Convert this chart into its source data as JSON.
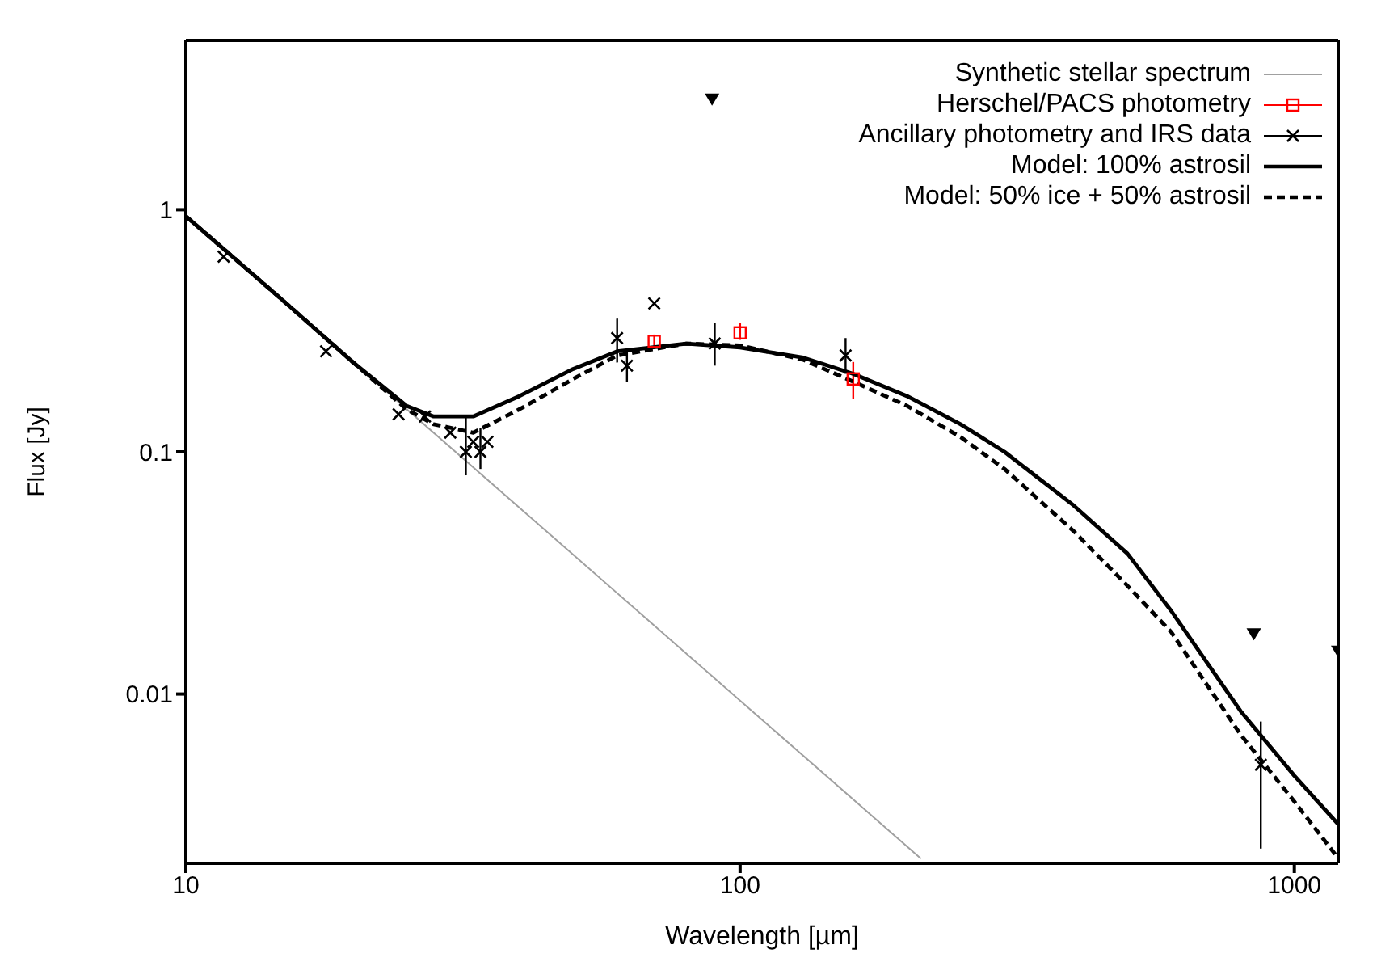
{
  "chart_data": {
    "type": "line",
    "xlabel": "Wavelength [µm]",
    "ylabel": "Flux [Jy]",
    "log": "xy",
    "legend": "top right",
    "xlim": [
      10,
      1200
    ],
    "xticks": [
      10,
      100,
      1000
    ],
    "ylim": [
      0.002,
      5
    ],
    "yticks": [
      0.01,
      0.1,
      1
    ],
    "series": [
      {
        "name": "Synthetic stellar spectrum",
        "type": "line",
        "color": "#a0a0a0",
        "line_style": "solid",
        "marker": "none",
        "x": [
          10,
          20,
          50,
          100,
          212
        ],
        "values": [
          0.94,
          0.235,
          0.0376,
          0.0094,
          0.00209
        ]
      },
      {
        "name": "Herschel/PACS photometry",
        "type": "scatter",
        "color": "#ff0000",
        "marker": "square",
        "x": [
          70,
          100,
          160
        ],
        "values": [
          0.286,
          0.31,
          0.2
        ],
        "errors": [
          [
            0.27,
            0.305
          ],
          [
            0.29,
            0.34
          ],
          [
            0.165,
            0.235
          ]
        ]
      },
      {
        "name": "Ancillary photometry and IRS data",
        "type": "scatter",
        "color": "#000000",
        "marker": "cross",
        "x": [
          11.7,
          17.9,
          24.2,
          27,
          30,
          32,
          33,
          34,
          35,
          60,
          62.5,
          70,
          90,
          155,
          870
        ],
        "values": [
          0.64,
          0.26,
          0.143,
          0.14,
          0.12,
          0.1,
          0.11,
          0.1,
          0.11,
          0.295,
          0.227,
          0.41,
          0.28,
          0.25,
          0.0051
        ],
        "errors": [
          null,
          null,
          null,
          null,
          null,
          [
            0.08,
            0.14
          ],
          null,
          [
            0.085,
            0.125
          ],
          null,
          [
            0.234,
            0.355
          ],
          [
            0.194,
            0.265
          ],
          null,
          [
            0.227,
            0.34
          ],
          [
            0.21,
            0.295
          ],
          [
            0.0023,
            0.0077
          ]
        ]
      },
      {
        "name": "Model: 100% astrosil",
        "type": "line",
        "color": "#000000",
        "line_style": "solid",
        "marker": "none",
        "x": [
          10,
          15,
          20,
          25,
          28,
          33,
          40,
          50,
          60,
          80,
          100,
          130,
          160,
          200,
          250,
          300,
          400,
          500,
          600,
          800,
          1000,
          1200
        ],
        "values": [
          0.94,
          0.42,
          0.235,
          0.155,
          0.14,
          0.14,
          0.17,
          0.22,
          0.26,
          0.28,
          0.27,
          0.245,
          0.21,
          0.17,
          0.13,
          0.1,
          0.06,
          0.038,
          0.022,
          0.0085,
          0.0046,
          0.0029
        ]
      },
      {
        "name": "Model: 50% ice + 50% astrosil",
        "type": "line",
        "color": "#000000",
        "line_style": "dashed",
        "marker": "none",
        "x": [
          10,
          15,
          20,
          25,
          28,
          33,
          40,
          50,
          60,
          80,
          100,
          130,
          160,
          200,
          250,
          300,
          400,
          500,
          600,
          800,
          1000,
          1200
        ],
        "values": [
          0.94,
          0.42,
          0.235,
          0.15,
          0.13,
          0.12,
          0.15,
          0.2,
          0.25,
          0.28,
          0.275,
          0.24,
          0.195,
          0.155,
          0.115,
          0.085,
          0.047,
          0.028,
          0.018,
          0.0068,
          0.0036,
          0.0021
        ]
      },
      {
        "type": "scatter",
        "color": "#000000",
        "marker": "triangle",
        "x": [
          89,
          845,
          1200
        ],
        "values": [
          2.86,
          0.0177,
          0.015
        ]
      }
    ]
  }
}
